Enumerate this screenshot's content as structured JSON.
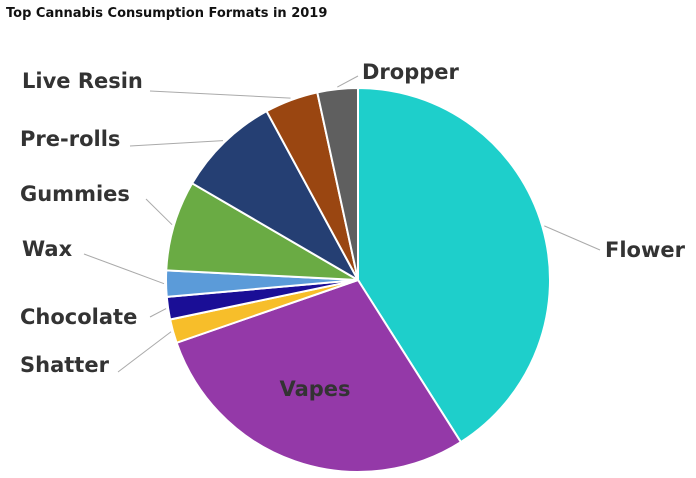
{
  "chart_data": {
    "type": "pie",
    "title": "Top Cannabis Consumption Formats in 2019",
    "slices": [
      {
        "label": "Flower",
        "value": 41.0,
        "color": "#1ecfcb"
      },
      {
        "label": "Vapes",
        "value": 28.7,
        "color": "#9439a8"
      },
      {
        "label": "Shatter",
        "value": 2.0,
        "color": "#f7be2a"
      },
      {
        "label": "Chocolate",
        "value": 1.9,
        "color": "#1a0e96"
      },
      {
        "label": "Wax",
        "value": 2.2,
        "color": "#5b9bd9"
      },
      {
        "label": "Gummies",
        "value": 7.6,
        "color": "#6aab44"
      },
      {
        "label": "Pre-rolls",
        "value": 8.7,
        "color": "#253f73"
      },
      {
        "label": "Live Resin",
        "value": 4.5,
        "color": "#9a4611"
      },
      {
        "label": "Dropper",
        "value": 3.4,
        "color": "#5f5f5f"
      }
    ],
    "start": "top",
    "direction": "clockwise"
  }
}
